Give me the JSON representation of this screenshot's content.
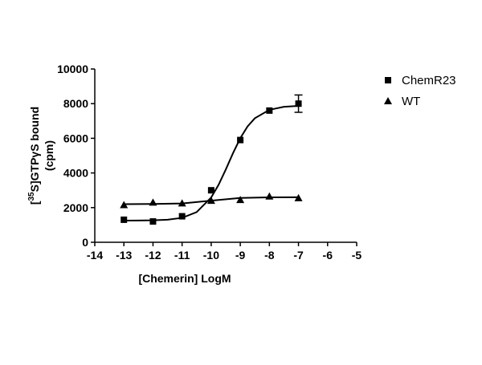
{
  "chart_data": {
    "type": "scatter",
    "x_label": "[Chemerin] LogM",
    "y_label": {
      "pre": "[",
      "sup": "35",
      "post": "S]GTPγS bound",
      "line2": "(cpm)"
    },
    "x": [
      -13,
      -12,
      -11,
      -10,
      -9,
      -8,
      -7
    ],
    "series": [
      {
        "name": "ChemR23",
        "color": "#000000",
        "marker": "square",
        "values": [
          1300,
          1200,
          1500,
          3000,
          5900,
          7600,
          8000
        ],
        "errors": [
          null,
          null,
          null,
          null,
          null,
          null,
          500
        ],
        "fit": {
          "x": [
            -13,
            -12.5,
            -12,
            -11.5,
            -11,
            -10.5,
            -10,
            -9.75,
            -9.5,
            -9.25,
            -9,
            -8.75,
            -8.5,
            -8,
            -7.5,
            -7
          ],
          "values": [
            1250,
            1255,
            1267,
            1302,
            1409,
            1739,
            2585,
            3302,
            4193,
            5143,
            6006,
            6683,
            7156,
            7644,
            7817,
            7873
          ]
        }
      },
      {
        "name": "WT",
        "color": "#000000",
        "marker": "triangle",
        "values": [
          2150,
          2300,
          2250,
          2400,
          2450,
          2650,
          2550
        ],
        "errors": [
          null,
          null,
          null,
          null,
          null,
          null,
          null
        ],
        "fit": {
          "x": [
            -13,
            -12,
            -11,
            -10,
            -9,
            -8,
            -7
          ],
          "values": [
            2200,
            2210,
            2240,
            2400,
            2560,
            2595,
            2600
          ]
        }
      }
    ],
    "xlim": [
      -14,
      -5
    ],
    "xticks": [
      -14,
      -13,
      -12,
      -11,
      -10,
      -9,
      -8,
      -7,
      -6,
      -5
    ],
    "ylim": [
      0,
      10000
    ],
    "yticks": [
      0,
      2000,
      4000,
      6000,
      8000,
      10000
    ],
    "grid": false,
    "legend": "upper right"
  }
}
